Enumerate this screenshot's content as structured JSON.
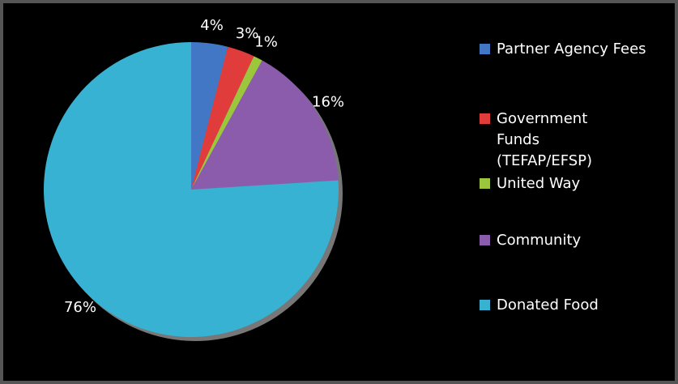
{
  "chart_data": {
    "type": "pie",
    "categories": [
      "Partner Agency Fees",
      "Government Funds (TEFAP/EFSP)",
      "United Way",
      "Community",
      "Donated Food"
    ],
    "values": [
      4,
      3,
      1,
      16,
      76
    ],
    "value_labels": [
      "4%",
      "3%",
      "1%",
      "16%",
      "76%"
    ],
    "colors": [
      "#4277c6",
      "#e03c3c",
      "#9cc63c",
      "#8a5cab",
      "#37b2d2"
    ],
    "legend": "right"
  }
}
